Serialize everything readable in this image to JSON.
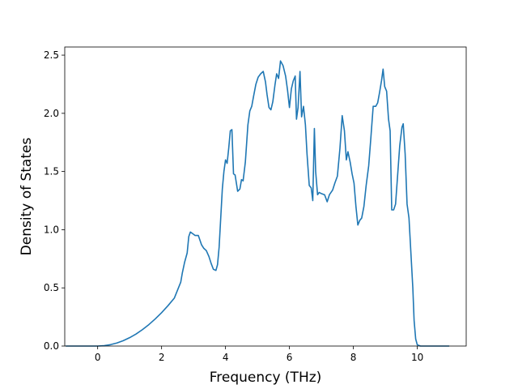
{
  "chart_data": {
    "type": "line",
    "xlabel": "Frequency (THz)",
    "ylabel": "Density of States",
    "xlim": [
      -1.03,
      11.53
    ],
    "ylim": [
      0.0,
      2.57
    ],
    "x_ticks": [
      0,
      2,
      4,
      6,
      8,
      10
    ],
    "y_ticks": [
      0.0,
      0.5,
      1.0,
      1.5,
      2.0,
      2.5
    ],
    "x_tick_labels": [
      "0",
      "2",
      "4",
      "6",
      "8",
      "10"
    ],
    "y_tick_labels": [
      "0.0",
      "0.5",
      "1.0",
      "1.5",
      "2.0",
      "2.5"
    ],
    "grid": false,
    "series": [
      {
        "color": "#1f77b4",
        "points": [
          [
            -1.0,
            0.0
          ],
          [
            -0.5,
            0.0
          ],
          [
            0.0,
            0.0
          ],
          [
            0.2,
            0.003
          ],
          [
            0.4,
            0.012
          ],
          [
            0.6,
            0.026
          ],
          [
            0.8,
            0.046
          ],
          [
            1.0,
            0.072
          ],
          [
            1.2,
            0.103
          ],
          [
            1.4,
            0.141
          ],
          [
            1.6,
            0.184
          ],
          [
            1.8,
            0.233
          ],
          [
            2.0,
            0.287
          ],
          [
            2.2,
            0.347
          ],
          [
            2.4,
            0.413
          ],
          [
            2.6,
            0.55
          ],
          [
            2.65,
            0.63
          ],
          [
            2.72,
            0.72
          ],
          [
            2.8,
            0.8
          ],
          [
            2.85,
            0.94
          ],
          [
            2.9,
            0.98
          ],
          [
            3.0,
            0.96
          ],
          [
            3.05,
            0.95
          ],
          [
            3.15,
            0.95
          ],
          [
            3.25,
            0.87
          ],
          [
            3.32,
            0.84
          ],
          [
            3.4,
            0.82
          ],
          [
            3.48,
            0.77
          ],
          [
            3.55,
            0.71
          ],
          [
            3.62,
            0.66
          ],
          [
            3.7,
            0.65
          ],
          [
            3.75,
            0.7
          ],
          [
            3.8,
            0.85
          ],
          [
            3.85,
            1.1
          ],
          [
            3.9,
            1.35
          ],
          [
            3.95,
            1.5
          ],
          [
            4.0,
            1.6
          ],
          [
            4.05,
            1.57
          ],
          [
            4.1,
            1.7
          ],
          [
            4.15,
            1.85
          ],
          [
            4.2,
            1.86
          ],
          [
            4.25,
            1.48
          ],
          [
            4.3,
            1.47
          ],
          [
            4.38,
            1.33
          ],
          [
            4.45,
            1.35
          ],
          [
            4.5,
            1.43
          ],
          [
            4.55,
            1.42
          ],
          [
            4.62,
            1.58
          ],
          [
            4.7,
            1.9
          ],
          [
            4.76,
            2.02
          ],
          [
            4.82,
            2.06
          ],
          [
            4.88,
            2.15
          ],
          [
            4.95,
            2.25
          ],
          [
            5.02,
            2.31
          ],
          [
            5.1,
            2.34
          ],
          [
            5.18,
            2.36
          ],
          [
            5.25,
            2.27
          ],
          [
            5.3,
            2.16
          ],
          [
            5.36,
            2.05
          ],
          [
            5.42,
            2.03
          ],
          [
            5.48,
            2.1
          ],
          [
            5.55,
            2.25
          ],
          [
            5.6,
            2.34
          ],
          [
            5.66,
            2.3
          ],
          [
            5.72,
            2.45
          ],
          [
            5.8,
            2.41
          ],
          [
            5.88,
            2.32
          ],
          [
            5.94,
            2.2
          ],
          [
            6.0,
            2.05
          ],
          [
            6.06,
            2.21
          ],
          [
            6.12,
            2.28
          ],
          [
            6.18,
            2.32
          ],
          [
            6.22,
            1.95
          ],
          [
            6.27,
            2.05
          ],
          [
            6.33,
            2.36
          ],
          [
            6.38,
            1.97
          ],
          [
            6.44,
            2.06
          ],
          [
            6.5,
            1.9
          ],
          [
            6.55,
            1.65
          ],
          [
            6.62,
            1.38
          ],
          [
            6.68,
            1.36
          ],
          [
            6.73,
            1.25
          ],
          [
            6.78,
            1.87
          ],
          [
            6.82,
            1.5
          ],
          [
            6.88,
            1.3
          ],
          [
            6.93,
            1.32
          ],
          [
            7.0,
            1.31
          ],
          [
            7.1,
            1.3
          ],
          [
            7.18,
            1.24
          ],
          [
            7.25,
            1.3
          ],
          [
            7.35,
            1.34
          ],
          [
            7.42,
            1.4
          ],
          [
            7.5,
            1.46
          ],
          [
            7.58,
            1.7
          ],
          [
            7.65,
            1.98
          ],
          [
            7.72,
            1.85
          ],
          [
            7.78,
            1.6
          ],
          [
            7.83,
            1.67
          ],
          [
            7.9,
            1.58
          ],
          [
            7.96,
            1.48
          ],
          [
            8.02,
            1.4
          ],
          [
            8.08,
            1.2
          ],
          [
            8.14,
            1.04
          ],
          [
            8.2,
            1.08
          ],
          [
            8.26,
            1.1
          ],
          [
            8.33,
            1.2
          ],
          [
            8.4,
            1.38
          ],
          [
            8.48,
            1.55
          ],
          [
            8.55,
            1.8
          ],
          [
            8.62,
            2.06
          ],
          [
            8.7,
            2.06
          ],
          [
            8.76,
            2.09
          ],
          [
            8.82,
            2.18
          ],
          [
            8.88,
            2.28
          ],
          [
            8.93,
            2.38
          ],
          [
            8.98,
            2.23
          ],
          [
            9.04,
            2.19
          ],
          [
            9.1,
            1.95
          ],
          [
            9.15,
            1.85
          ],
          [
            9.2,
            1.17
          ],
          [
            9.26,
            1.17
          ],
          [
            9.32,
            1.22
          ],
          [
            9.38,
            1.45
          ],
          [
            9.45,
            1.72
          ],
          [
            9.52,
            1.88
          ],
          [
            9.56,
            1.91
          ],
          [
            9.62,
            1.65
          ],
          [
            9.68,
            1.22
          ],
          [
            9.74,
            1.1
          ],
          [
            9.8,
            0.8
          ],
          [
            9.86,
            0.5
          ],
          [
            9.9,
            0.22
          ],
          [
            9.95,
            0.06
          ],
          [
            10.0,
            0.01
          ],
          [
            10.1,
            0.0
          ],
          [
            10.5,
            0.0
          ],
          [
            11.0,
            0.0
          ]
        ]
      }
    ]
  }
}
